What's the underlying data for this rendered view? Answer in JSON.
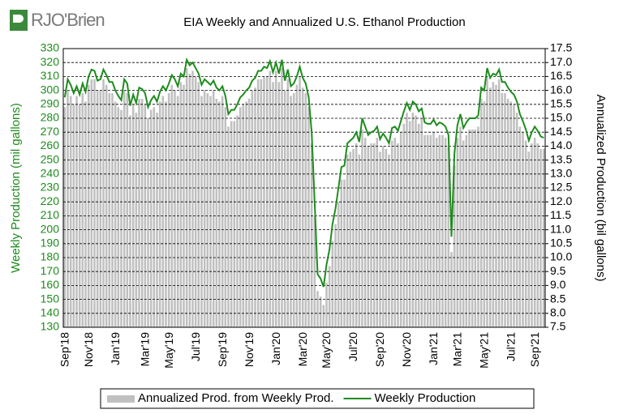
{
  "logo": "RJO'Brien",
  "chart_data": {
    "type": "bar-line",
    "title": "EIA Weekly and Annualized U.S. Ethanol Production",
    "y_label": "Weekly Production (mil gallons)",
    "y2_label": "Annualized Production (bil gallons)",
    "categories": [
      "Sep'18",
      null,
      null,
      null,
      null,
      null,
      null,
      null,
      "Nov'18",
      null,
      null,
      null,
      null,
      null,
      null,
      null,
      null,
      "Jan'19",
      null,
      null,
      null,
      null,
      null,
      null,
      null,
      null,
      null,
      "Mar'19",
      null,
      null,
      null,
      null,
      null,
      null,
      null,
      "May'19",
      null,
      null,
      null,
      null,
      null,
      null,
      null,
      null,
      "Jul'19",
      null,
      null,
      null,
      null,
      null,
      null,
      null,
      null,
      "Sep'19",
      null,
      null,
      null,
      null,
      null,
      null,
      null,
      null,
      "Nov'19",
      null,
      null,
      null,
      null,
      null,
      null,
      null,
      null,
      "Jan'20",
      null,
      null,
      null,
      null,
      null,
      null,
      null,
      null,
      "Mar'20",
      null,
      null,
      null,
      null,
      null,
      null,
      null,
      "May'20",
      null,
      null,
      null,
      null,
      null,
      null,
      null,
      null,
      "Jul'20",
      null,
      null,
      null,
      null,
      null,
      null,
      null,
      null,
      "Sep'20",
      null,
      null,
      null,
      null,
      null,
      null,
      null,
      null,
      "Nov'20",
      null,
      null,
      null,
      null,
      null,
      null,
      null,
      null,
      "Jan'21",
      null,
      null,
      null,
      null,
      null,
      null,
      null,
      "Mar'21",
      null,
      null,
      null,
      null,
      null,
      null,
      null,
      null,
      "May'21",
      null,
      null,
      null,
      null,
      null,
      null,
      null,
      null,
      "Jul'21",
      null,
      null,
      null,
      null,
      null,
      null,
      null,
      "Sep'21",
      null,
      null,
      null
    ],
    "series": [
      {
        "name": "Annualized Prod. from Weekly Prod.",
        "type": "bar",
        "axis": "y2",
        "color": "#c0c0c0",
        "values": [
          15.4,
          16.0,
          15.8,
          15.5,
          15.8,
          15.5,
          15.9,
          15.6,
          16.2,
          16.4,
          16.4,
          16.0,
          16.0,
          16.4,
          16.2,
          15.9,
          15.9,
          15.6,
          15.4,
          15.3,
          16.0,
          15.9,
          15.1,
          15.5,
          15.2,
          15.7,
          15.7,
          15.5,
          15.0,
          15.3,
          15.4,
          15.2,
          15.6,
          15.8,
          15.6,
          15.9,
          16.2,
          16.0,
          15.8,
          16.3,
          16.2,
          16.8,
          16.6,
          16.7,
          16.5,
          16.3,
          15.8,
          16.0,
          15.9,
          15.8,
          16.0,
          15.7,
          15.6,
          15.8,
          15.4,
          14.7,
          14.9,
          14.9,
          15.1,
          15.4,
          15.5,
          15.6,
          15.7,
          16.0,
          16.1,
          16.4,
          16.4,
          16.5,
          16.5,
          16.7,
          16.3,
          16.7,
          16.3,
          16.8,
          16.0,
          16.4,
          15.8,
          15.9,
          16.2,
          16.5,
          16.1,
          15.9,
          15.4,
          14.1,
          11.5,
          8.8,
          8.6,
          8.3,
          9.1,
          9.7,
          10.6,
          11.2,
          12.0,
          12.8,
          12.8,
          13.7,
          13.8,
          13.9,
          14.1,
          13.7,
          14.6,
          14.3,
          14.0,
          14.1,
          14.1,
          14.3,
          13.8,
          14.0,
          13.9,
          13.7,
          14.2,
          14.3,
          14.1,
          14.5,
          14.8,
          15.2,
          14.9,
          15.2,
          15.1,
          14.8,
          15.0,
          14.4,
          14.4,
          14.4,
          14.5,
          14.3,
          14.4,
          14.4,
          14.3,
          14.0,
          10.2,
          13.3,
          14.3,
          14.7,
          14.2,
          14.4,
          14.6,
          14.6,
          14.6,
          14.7,
          15.7,
          15.6,
          16.5,
          16.1,
          16.3,
          16.2,
          16.4,
          15.9,
          15.9,
          15.7,
          15.6,
          15.5,
          15.2,
          14.7,
          14.5,
          14.2,
          13.8,
          14.1,
          14.3,
          14.1,
          13.9,
          13.9
        ]
      },
      {
        "name": "Weekly Production",
        "type": "line",
        "color": "#1e8c1e",
        "values": [
          295,
          308,
          304,
          298,
          303,
          297,
          305,
          299,
          310,
          315,
          314,
          307,
          308,
          315,
          311,
          306,
          306,
          300,
          296,
          293,
          308,
          305,
          289,
          297,
          291,
          302,
          301,
          298,
          288,
          293,
          296,
          292,
          299,
          303,
          300,
          305,
          311,
          308,
          303,
          312,
          310,
          322,
          318,
          320,
          316,
          312,
          304,
          308,
          306,
          304,
          307,
          302,
          300,
          303,
          296,
          283,
          286,
          286,
          290,
          295,
          297,
          300,
          302,
          307,
          309,
          314,
          314,
          317,
          316,
          321,
          313,
          320,
          312,
          322,
          307,
          315,
          303,
          305,
          310,
          317,
          309,
          305,
          295,
          270,
          220,
          168,
          165,
          159,
          175,
          186,
          204,
          215,
          230,
          245,
          246,
          262,
          264,
          266,
          270,
          263,
          280,
          274,
          268,
          270,
          271,
          274,
          265,
          269,
          266,
          262,
          273,
          274,
          271,
          278,
          285,
          291,
          286,
          292,
          290,
          285,
          287,
          277,
          276,
          276,
          279,
          275,
          277,
          276,
          274,
          268,
          195,
          255,
          275,
          283,
          273,
          277,
          280,
          280,
          280,
          282,
          302,
          300,
          316,
          309,
          312,
          311,
          315,
          306,
          306,
          302,
          299,
          297,
          292,
          283,
          278,
          272,
          264,
          270,
          274,
          271,
          267,
          266
        ]
      }
    ],
    "ylim": [
      130,
      330
    ],
    "yticks": [
      130,
      140,
      150,
      160,
      170,
      180,
      190,
      200,
      210,
      220,
      230,
      240,
      250,
      260,
      270,
      280,
      290,
      300,
      310,
      320,
      330
    ],
    "y2lim": [
      7.5,
      17.5
    ],
    "y2ticks": [
      7.5,
      {
        "value": 8,
        "label": "8.0"
      },
      8.5,
      {
        "value": 9,
        "label": "9.0"
      },
      9.5,
      {
        "value": 10,
        "label": "10.0"
      },
      10.5,
      {
        "value": 11,
        "label": "11.0"
      },
      11.5,
      {
        "value": 12,
        "label": "12.0"
      },
      12.5,
      {
        "value": 13,
        "label": "13.0"
      },
      13.5,
      {
        "value": 14,
        "label": "14.0"
      },
      14.5,
      {
        "value": 15,
        "label": "15.0"
      },
      15.5,
      {
        "value": 16,
        "label": "16.0"
      },
      16.5,
      {
        "value": 17,
        "label": "17.0"
      },
      17.5
    ],
    "grid": true,
    "legend": "bottom"
  }
}
